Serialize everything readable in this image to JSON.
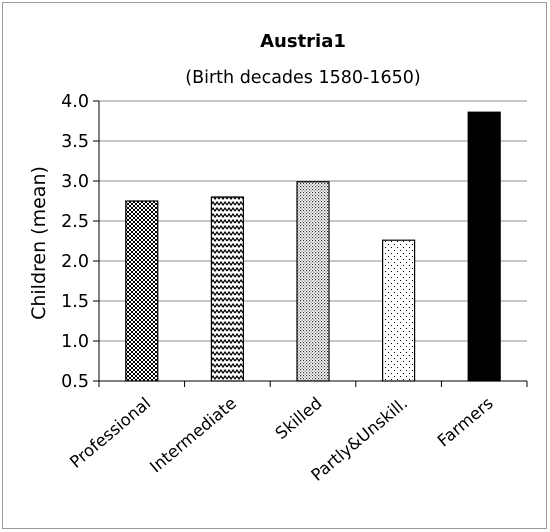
{
  "chart_data": {
    "type": "bar",
    "title": "Austria1",
    "subtitle": "(Birth decades 1580-1650)",
    "ylabel": "Children (mean)",
    "xlabel": "",
    "ylim": [
      0.5,
      4.0
    ],
    "yticks": [
      "0.5",
      "1.0",
      "1.5",
      "2.0",
      "2.5",
      "3.0",
      "3.5",
      "4.0"
    ],
    "grid": true,
    "legend": "none",
    "categories": [
      "Professional",
      "Intermediate",
      "Skilled",
      "Partly&Unskill.",
      "Farmers"
    ],
    "values": [
      2.75,
      2.8,
      2.99,
      2.26,
      3.86
    ],
    "patterns": [
      "dense-checker",
      "zigzag",
      "fine-dots",
      "sparse-dots",
      "solid-black"
    ]
  }
}
